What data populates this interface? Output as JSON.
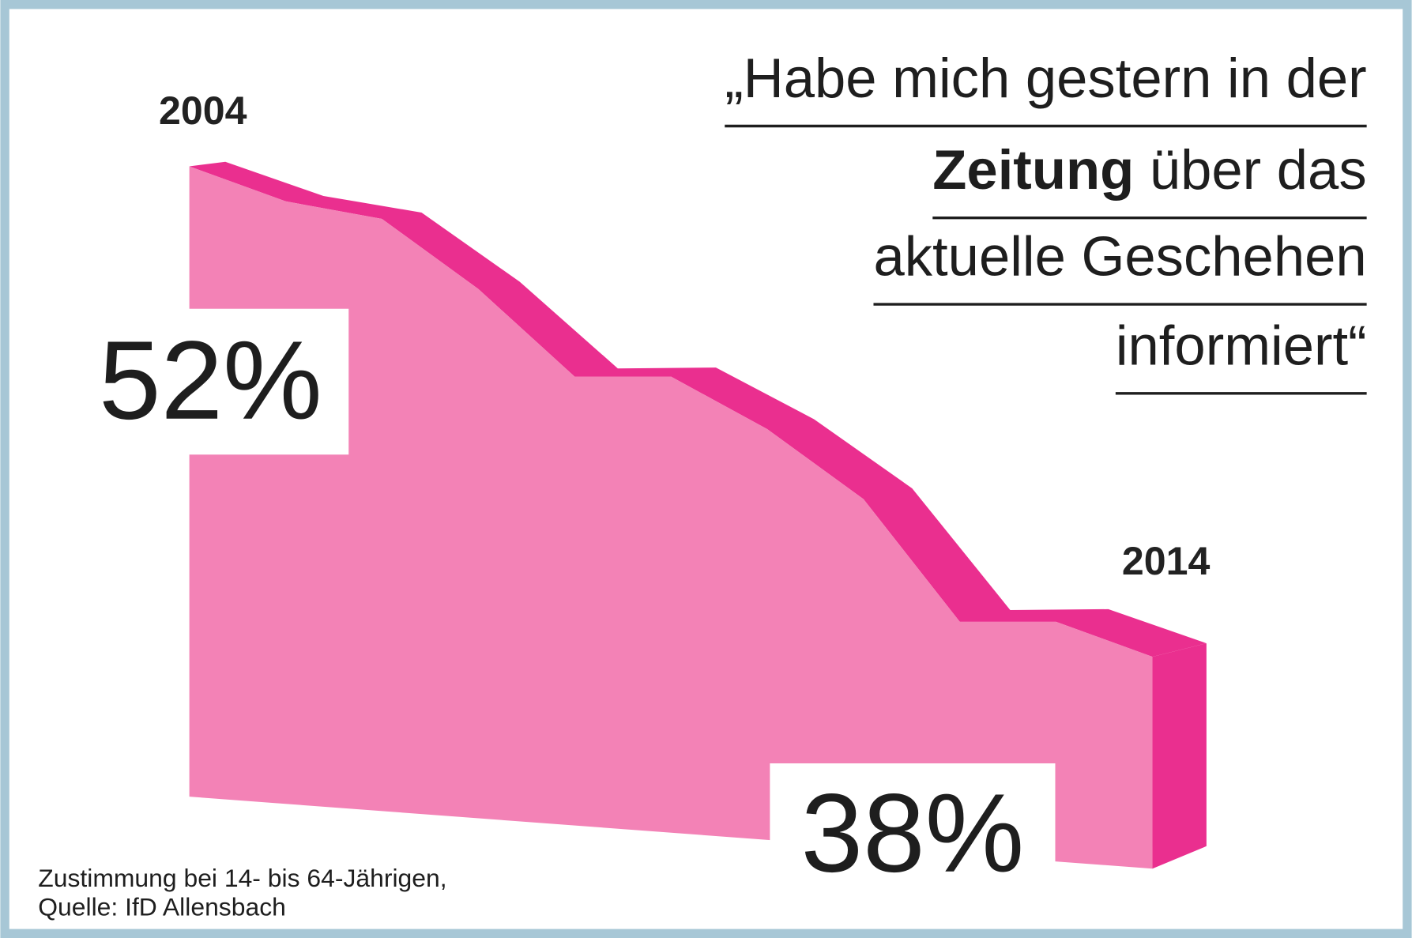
{
  "chart_data": {
    "type": "area3d",
    "title_lines": [
      [
        {
          "text": "„Habe mich gestern in der"
        }
      ],
      [
        {
          "text": "Zeitung",
          "bold": true
        },
        {
          "text": " über das"
        }
      ],
      [
        {
          "text": "aktuelle Geschehen"
        }
      ],
      [
        {
          "text": "informiert“"
        }
      ]
    ],
    "categories": [
      "2004",
      null,
      null,
      null,
      null,
      null,
      null,
      null,
      null,
      null,
      "2014"
    ],
    "values": [
      52,
      51,
      50.5,
      48.5,
      46,
      46,
      44.5,
      42.5,
      39,
      39,
      38
    ],
    "value_labels": [
      "52%",
      null,
      null,
      null,
      null,
      null,
      null,
      null,
      null,
      null,
      "38%"
    ],
    "ylim": [
      30,
      55
    ],
    "color": "#f382b6",
    "side_color": "#ea2f8f",
    "note_lines": [
      "Zustimmung bei 14- bis 64-Jährigen,",
      "Quelle: IfD Allensbach"
    ]
  }
}
